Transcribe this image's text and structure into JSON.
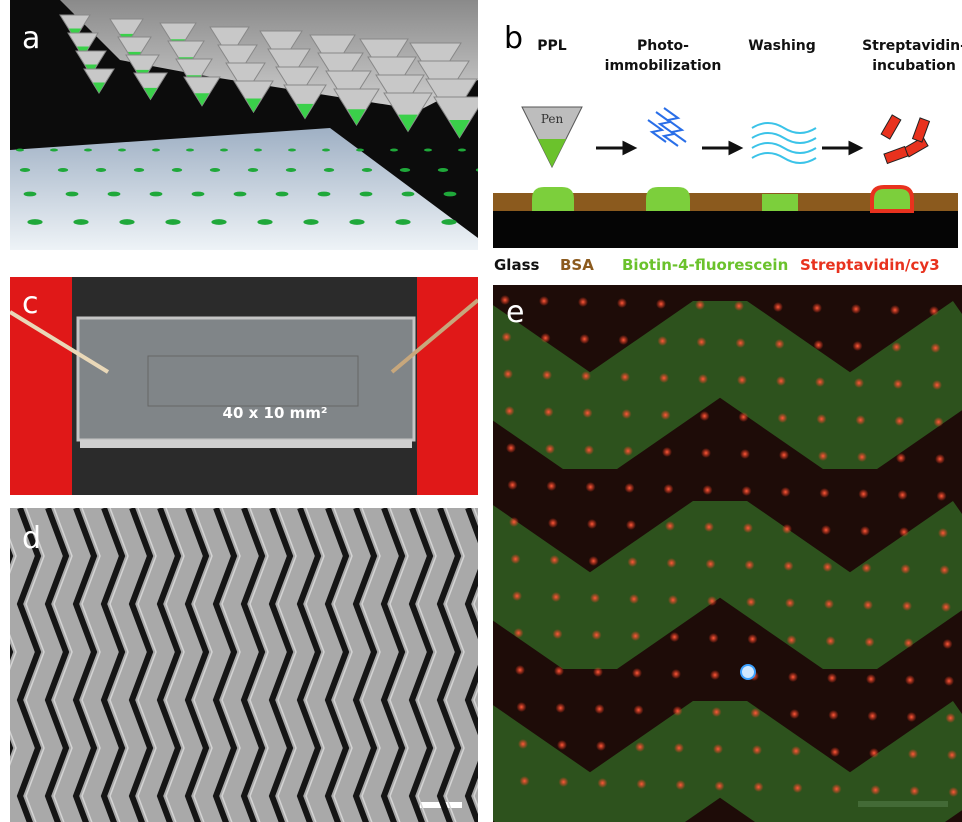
{
  "panels": {
    "a": {
      "label": "a"
    },
    "b": {
      "label": "b",
      "steps": [
        [
          "PPL"
        ],
        [
          "Photo-",
          "immobilization"
        ],
        [
          "Washing"
        ],
        [
          "Streptavidin-",
          "incubation"
        ]
      ],
      "pen_label": "Pen",
      "legend": [
        "Glass",
        "BSA",
        "Biotin-4-fluorescein",
        "Streptavidin/cy3"
      ]
    },
    "c": {
      "label": "c",
      "annotation": "40 x 10 mm²"
    },
    "d": {
      "label": "d"
    },
    "e": {
      "label": "e"
    }
  }
}
